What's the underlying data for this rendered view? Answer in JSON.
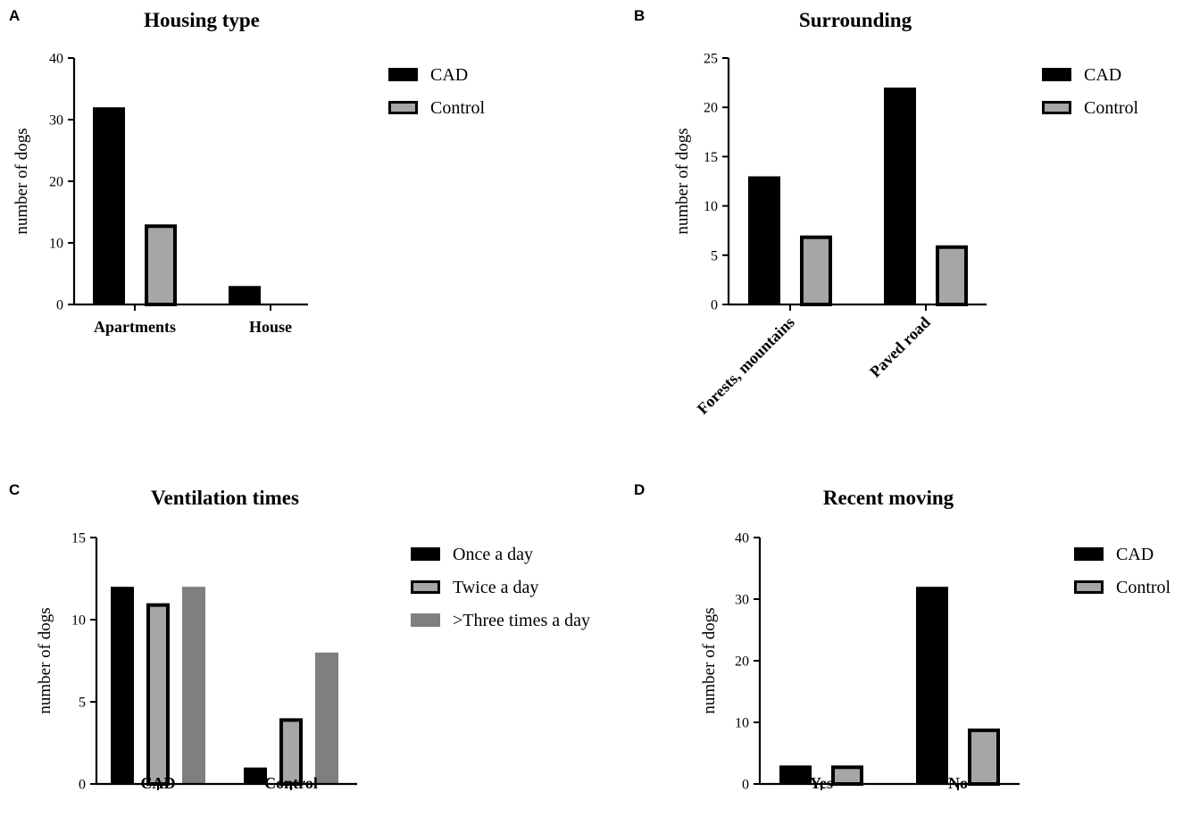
{
  "chart_data": [
    {
      "type": "bar",
      "panel": "A",
      "title": "Housing type",
      "ylabel": "number of dogs",
      "xlabel": "",
      "ylim": [
        0,
        40
      ],
      "yticks": [
        "0",
        "10",
        "20",
        "30",
        "40"
      ],
      "categories": [
        "Apartments",
        "House"
      ],
      "series": [
        {
          "name": "CAD",
          "values": [
            32,
            3
          ],
          "fill": "#000000",
          "stroke": "#000000"
        },
        {
          "name": "Control",
          "values": [
            13,
            0
          ],
          "fill": "#a6a6a6",
          "stroke": "#000000"
        }
      ],
      "legend_position": "top-right",
      "grid": false
    },
    {
      "type": "bar",
      "panel": "B",
      "title": "Surrounding",
      "ylabel": "number of dogs",
      "xlabel": "",
      "ylim": [
        0,
        25
      ],
      "yticks": [
        "0",
        "5",
        "10",
        "15",
        "20",
        "25"
      ],
      "categories": [
        "Forests, mountains",
        "Paved road"
      ],
      "series": [
        {
          "name": "CAD",
          "values": [
            13,
            22
          ],
          "fill": "#000000",
          "stroke": "#000000"
        },
        {
          "name": "Control",
          "values": [
            7,
            6
          ],
          "fill": "#a6a6a6",
          "stroke": "#000000"
        }
      ],
      "legend_position": "top-right",
      "grid": false
    },
    {
      "type": "bar",
      "panel": "C",
      "title": "Ventilation times",
      "ylabel": "number of dogs",
      "xlabel": "",
      "ylim": [
        0,
        15
      ],
      "yticks": [
        "0",
        "5",
        "10",
        "15"
      ],
      "categories": [
        "CAD",
        "Control"
      ],
      "series": [
        {
          "name": "Once a day",
          "values": [
            12,
            1
          ],
          "fill": "#000000",
          "stroke": "#000000"
        },
        {
          "name": "Twice a day",
          "values": [
            11,
            4
          ],
          "fill": "#a6a6a6",
          "stroke": "#000000"
        },
        {
          "name": ">Three times a day",
          "values": [
            12,
            8
          ],
          "fill": "#7f7f7f",
          "stroke": "#7f7f7f"
        }
      ],
      "legend_position": "top-right",
      "grid": false
    },
    {
      "type": "bar",
      "panel": "D",
      "title": "Recent moving",
      "ylabel": "number of dogs",
      "xlabel": "",
      "ylim": [
        0,
        40
      ],
      "yticks": [
        "0",
        "10",
        "20",
        "30",
        "40"
      ],
      "categories": [
        "Yes",
        "No"
      ],
      "series": [
        {
          "name": "CAD",
          "values": [
            3,
            32
          ],
          "fill": "#000000",
          "stroke": "#000000"
        },
        {
          "name": "Control",
          "values": [
            3,
            9
          ],
          "fill": "#a6a6a6",
          "stroke": "#000000"
        }
      ],
      "legend_position": "top-right",
      "grid": false
    }
  ]
}
